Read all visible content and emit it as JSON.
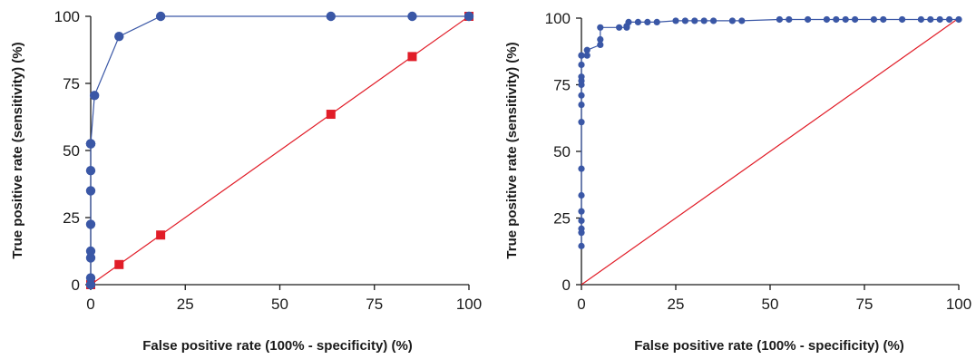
{
  "colors": {
    "blue": "#3a57a6",
    "red": "#e11d28",
    "axis": "#1a1a1a"
  },
  "chart_data": [
    {
      "type": "line",
      "xlabel": "False positive rate (100% - specificity) (%)",
      "ylabel": "True positive rate (sensitivity) (%)",
      "xlim": [
        0,
        100
      ],
      "ylim": [
        0,
        100
      ],
      "xticks": [
        0,
        25,
        50,
        75,
        100
      ],
      "yticks": [
        0,
        25,
        50,
        75,
        100
      ],
      "grid": false,
      "series": [
        {
          "color": "#3a57a6",
          "marker": "circle",
          "x": [
            0,
            0,
            0,
            0,
            0,
            0,
            0,
            0,
            0,
            0,
            1,
            7.5,
            18.5,
            63.5,
            85,
            100
          ],
          "y": [
            0,
            2.5,
            10,
            12.5,
            22.5,
            35,
            42.5,
            52.5,
            52.5,
            52.5,
            70.5,
            92.5,
            100,
            100,
            100,
            100
          ]
        },
        {
          "color": "#e11d28",
          "marker": "square",
          "x": [
            0,
            7.5,
            18.5,
            63.5,
            85,
            100
          ],
          "y": [
            0,
            7.5,
            18.5,
            63.5,
            85,
            100
          ]
        }
      ]
    },
    {
      "type": "line",
      "xlabel": "False positive rate (100% - specificity) (%)",
      "ylabel": "True positive rate (sensitivity) (%)",
      "xlim": [
        0,
        100
      ],
      "ylim": [
        0,
        100
      ],
      "xticks": [
        0,
        25,
        50,
        75,
        100
      ],
      "yticks": [
        0,
        25,
        50,
        75,
        100
      ],
      "grid": false,
      "series": [
        {
          "color": "#3a57a6",
          "marker": "circle",
          "x": [
            0,
            0,
            0,
            0,
            0,
            0,
            0,
            0,
            0,
            0,
            0,
            0,
            0,
            0,
            0,
            0,
            1.5,
            1.5,
            5,
            5,
            5,
            10,
            12,
            12,
            12.5,
            15,
            17.5,
            20,
            25,
            27.5,
            30,
            32.5,
            35,
            40,
            42.5,
            52.5,
            55,
            60,
            65,
            67.5,
            70,
            72.5,
            77.5,
            80,
            85,
            90,
            92.5,
            95,
            97.5,
            100
          ],
          "y": [
            14.5,
            19.5,
            21,
            24,
            27.5,
            33.5,
            43.5,
            61,
            67.5,
            71,
            75,
            76.5,
            78,
            82.5,
            86,
            86,
            86,
            88,
            90,
            92,
            96.5,
            96.5,
            96.5,
            97,
            98.5,
            98.5,
            98.5,
            98.5,
            99,
            99,
            99,
            99,
            99,
            99,
            99,
            99.5,
            99.5,
            99.5,
            99.5,
            99.5,
            99.5,
            99.5,
            99.5,
            99.5,
            99.5,
            99.5,
            99.5,
            99.5,
            99.5,
            99.5
          ]
        },
        {
          "color": "#e11d28",
          "marker": "none",
          "x": [
            0,
            100
          ],
          "y": [
            0,
            100
          ]
        }
      ]
    }
  ]
}
